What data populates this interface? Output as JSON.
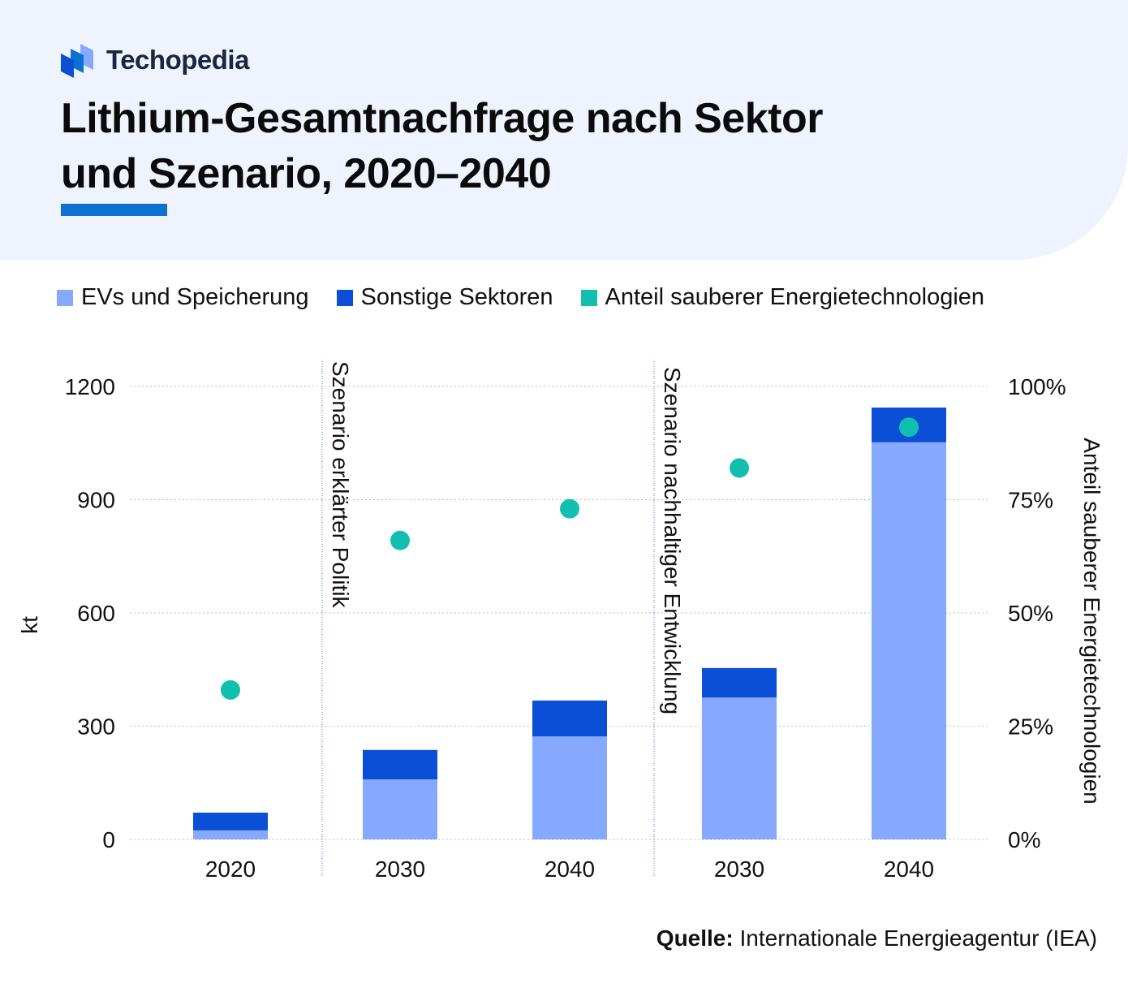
{
  "brand": {
    "name": "Techopedia"
  },
  "title": "Lithium-Gesamtnachfrage nach Sektor und Szenario, 2020–2040",
  "title_lines": [
    "Lithium-Gesamtnachfrage nach Sektor",
    "und Szenario, 2020–2040"
  ],
  "colors": {
    "ev": "#86a8ff",
    "other": "#0a4fd6",
    "share": "#11bfae",
    "accent": "#0b72d1",
    "header_bg": "#eff3fe"
  },
  "source": {
    "label": "Quelle:",
    "text": "Internationale Energieagentur (IEA)"
  },
  "chart_data": {
    "type": "bar",
    "stacked": true,
    "categories": [
      "2020",
      "2030",
      "2040",
      "2030",
      "2040"
    ],
    "scenarios": [
      "Szenario erklärter Politik",
      "Szenario nachhaltiger Entwicklung"
    ],
    "series": [
      {
        "name": "EVs und Speicherung",
        "axis": "left",
        "values": [
          24,
          159,
          273,
          376,
          1052
        ]
      },
      {
        "name": "Sonstige Sektoren",
        "axis": "left",
        "values": [
          47,
          78,
          95,
          78,
          92
        ]
      },
      {
        "name": "Anteil sauberer Energietechnologien",
        "type": "scatter",
        "axis": "right",
        "values": [
          33,
          66,
          73,
          82,
          91
        ]
      }
    ],
    "ylabel": "kt",
    "ylabel_right": "Anteil sauberer Energietechnologien",
    "ylim": [
      0,
      1200
    ],
    "yticks": [
      "0",
      "300",
      "600",
      "900",
      "1200"
    ],
    "ylim_right": [
      0,
      100
    ],
    "yticks_right": [
      "0%",
      "25%",
      "50%",
      "75%",
      "100%"
    ],
    "grid": true,
    "legend": "top"
  }
}
